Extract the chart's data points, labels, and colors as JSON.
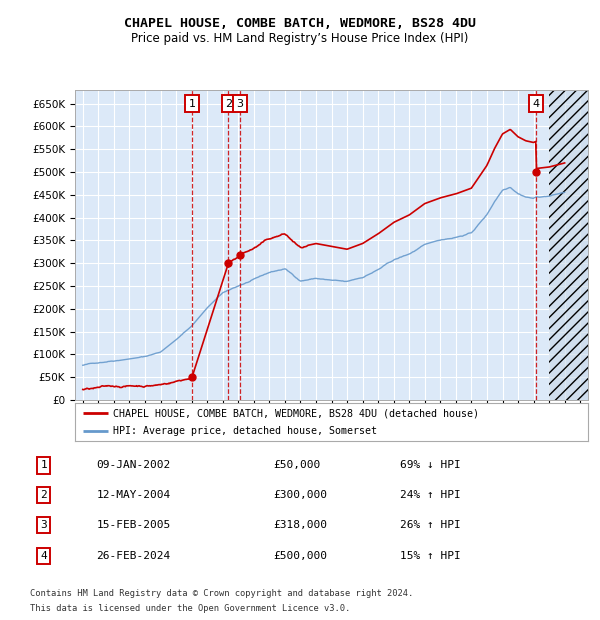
{
  "title": "CHAPEL HOUSE, COMBE BATCH, WEDMORE, BS28 4DU",
  "subtitle": "Price paid vs. HM Land Registry’s House Price Index (HPI)",
  "legend_line1": "CHAPEL HOUSE, COMBE BATCH, WEDMORE, BS28 4DU (detached house)",
  "legend_line2": "HPI: Average price, detached house, Somerset",
  "transactions": [
    {
      "num": 1,
      "date": "09-JAN-2002",
      "price": 50000,
      "hpi_text": "69% ↓ HPI",
      "year": 2002.03
    },
    {
      "num": 2,
      "date": "12-MAY-2004",
      "price": 300000,
      "hpi_text": "24% ↑ HPI",
      "year": 2004.37
    },
    {
      "num": 3,
      "date": "15-FEB-2005",
      "price": 318000,
      "hpi_text": "26% ↑ HPI",
      "year": 2005.12
    },
    {
      "num": 4,
      "date": "26-FEB-2024",
      "price": 500000,
      "hpi_text": "15% ↑ HPI",
      "year": 2024.15
    }
  ],
  "footer_line1": "Contains HM Land Registry data © Crown copyright and database right 2024.",
  "footer_line2": "This data is licensed under the Open Government Licence v3.0.",
  "xlim": [
    1994.5,
    2027.5
  ],
  "ylim": [
    0,
    680000
  ],
  "yticks": [
    0,
    50000,
    100000,
    150000,
    200000,
    250000,
    300000,
    350000,
    400000,
    450000,
    500000,
    550000,
    600000,
    650000
  ],
  "ytick_labels": [
    "£0",
    "£50K",
    "£100K",
    "£150K",
    "£200K",
    "£250K",
    "£300K",
    "£350K",
    "£400K",
    "£450K",
    "£500K",
    "£550K",
    "£600K",
    "£650K"
  ],
  "plot_bg": "#dce9f8",
  "grid_color": "#ffffff",
  "red_color": "#cc0000",
  "blue_color": "#6699cc",
  "hatch_start": 2025.0
}
